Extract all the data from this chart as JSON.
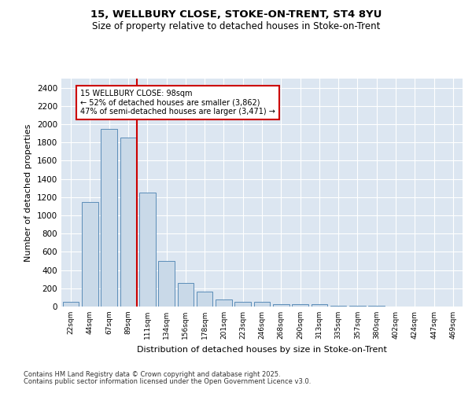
{
  "title_line1": "15, WELLBURY CLOSE, STOKE-ON-TRENT, ST4 8YU",
  "title_line2": "Size of property relative to detached houses in Stoke-on-Trent",
  "xlabel": "Distribution of detached houses by size in Stoke-on-Trent",
  "ylabel": "Number of detached properties",
  "categories": [
    "22sqm",
    "44sqm",
    "67sqm",
    "89sqm",
    "111sqm",
    "134sqm",
    "156sqm",
    "178sqm",
    "201sqm",
    "223sqm",
    "246sqm",
    "268sqm",
    "290sqm",
    "313sqm",
    "335sqm",
    "357sqm",
    "380sqm",
    "402sqm",
    "424sqm",
    "447sqm",
    "469sqm"
  ],
  "values": [
    50,
    1150,
    1950,
    1850,
    1250,
    500,
    260,
    160,
    80,
    50,
    50,
    30,
    30,
    25,
    12,
    8,
    5,
    3,
    2,
    1,
    1
  ],
  "bar_color": "#c9d9e8",
  "bar_edge_color": "#5b8db8",
  "red_line_x": 3.45,
  "red_line_color": "#cc0000",
  "annotation_text": "15 WELLBURY CLOSE: 98sqm\n← 52% of detached houses are smaller (3,862)\n47% of semi-detached houses are larger (3,471) →",
  "annotation_box_color": "#ffffff",
  "annotation_box_edge": "#cc0000",
  "ylim": [
    0,
    2500
  ],
  "yticks": [
    0,
    200,
    400,
    600,
    800,
    1000,
    1200,
    1400,
    1600,
    1800,
    2000,
    2200,
    2400
  ],
  "background_color": "#dce6f1",
  "footer_line1": "Contains HM Land Registry data © Crown copyright and database right 2025.",
  "footer_line2": "Contains public sector information licensed under the Open Government Licence v3.0."
}
